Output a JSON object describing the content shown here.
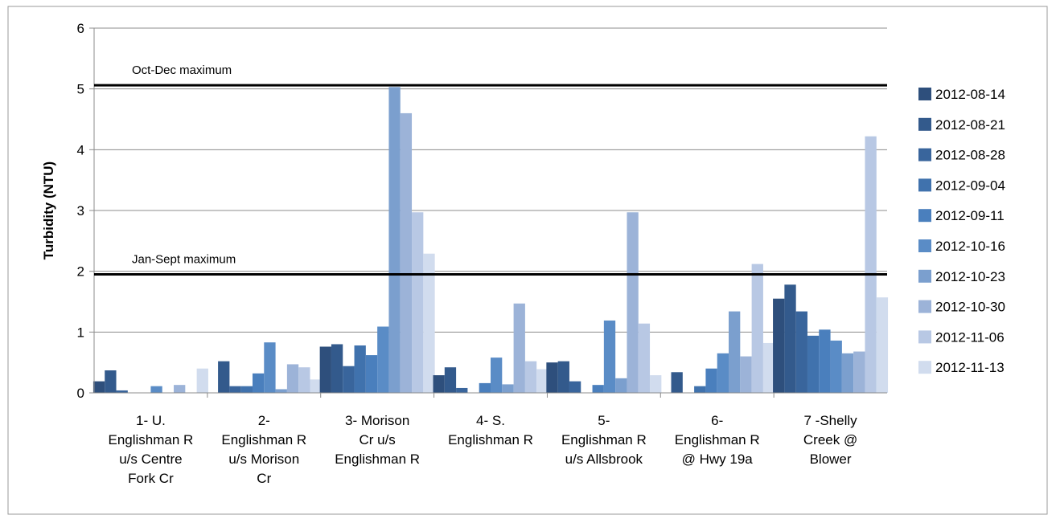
{
  "chart_data": {
    "type": "bar",
    "ylabel": "Turbidity (NTU)",
    "xlabel": "",
    "ylim": [
      0,
      6
    ],
    "yticks": [
      0,
      1,
      2,
      3,
      4,
      5,
      6
    ],
    "grid": true,
    "legend_position": "right",
    "categories": [
      [
        "1- U.",
        "Englishman R",
        "u/s Centre",
        "Fork Cr"
      ],
      [
        "2-",
        "Englishman R",
        "u/s Morison",
        "Cr"
      ],
      [
        "3- Morison",
        "Cr u/s",
        "Englishman R"
      ],
      [
        "4- S.",
        "Englishman R"
      ],
      [
        "5-",
        "Englishman R",
        "u/s Allsbrook"
      ],
      [
        "6-",
        "Englishman R",
        "@ Hwy 19a"
      ],
      [
        "7 -Shelly",
        "Creek @",
        "Blower"
      ]
    ],
    "series": [
      {
        "name": "2012-08-14",
        "color": "#2e4f7c",
        "values": [
          0.19,
          0.0,
          0.76,
          0.29,
          0.5,
          0.0,
          1.55
        ]
      },
      {
        "name": "2012-08-21",
        "color": "#335a8c",
        "values": [
          0.37,
          0.52,
          0.8,
          0.42,
          0.52,
          0.34,
          1.78
        ]
      },
      {
        "name": "2012-08-28",
        "color": "#39659c",
        "values": [
          0.04,
          0.11,
          0.44,
          0.08,
          0.19,
          0.0,
          1.34
        ]
      },
      {
        "name": "2012-09-04",
        "color": "#4072ad",
        "values": [
          0.0,
          0.11,
          0.78,
          0.0,
          0.0,
          0.11,
          0.94
        ]
      },
      {
        "name": "2012-09-11",
        "color": "#4a7fbd",
        "values": [
          0.0,
          0.32,
          0.62,
          0.16,
          0.13,
          0.4,
          1.04
        ]
      },
      {
        "name": "2012-10-16",
        "color": "#5a8cc6",
        "values": [
          0.11,
          0.83,
          1.09,
          0.58,
          1.19,
          0.65,
          0.86
        ]
      },
      {
        "name": "2012-10-23",
        "color": "#7b9fce",
        "values": [
          0.0,
          0.06,
          5.03,
          0.14,
          0.24,
          1.34,
          0.65
        ]
      },
      {
        "name": "2012-10-30",
        "color": "#9cb3d8",
        "values": [
          0.13,
          0.47,
          4.6,
          1.47,
          2.97,
          0.6,
          0.68
        ]
      },
      {
        "name": "2012-11-06",
        "color": "#b8c8e4",
        "values": [
          0.0,
          0.42,
          2.97,
          0.52,
          1.14,
          2.12,
          4.22
        ]
      },
      {
        "name": "2012-11-13",
        "color": "#d1dcee",
        "values": [
          0.4,
          0.22,
          2.29,
          0.39,
          0.29,
          0.82,
          1.57
        ]
      }
    ],
    "reference_lines": [
      {
        "label": "Oct-Dec maximum",
        "value": 5.06
      },
      {
        "label": "Jan-Sept maximum",
        "value": 1.95
      }
    ]
  }
}
